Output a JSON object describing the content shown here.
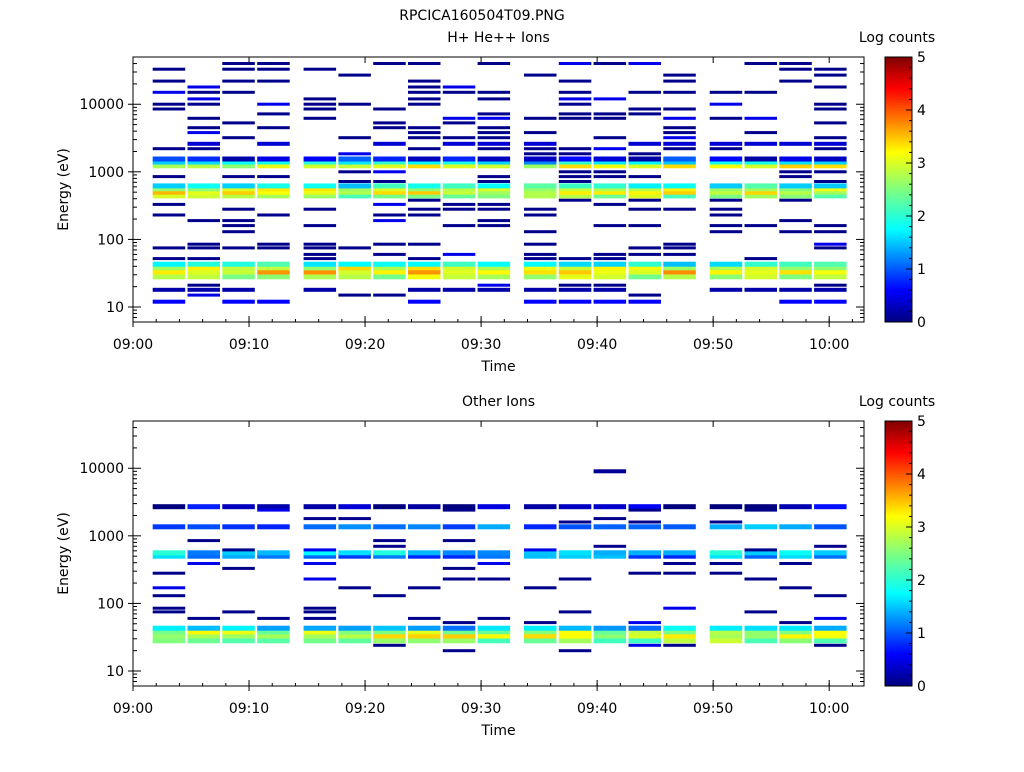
{
  "figure": {
    "title": "RPCICA160504T09.PNG"
  },
  "chart_data": [
    {
      "type": "heatmap",
      "title": "H+ He++ Ions",
      "xlabel": "Time",
      "ylabel": "Energy (eV)",
      "x_ticks": [
        "09:00",
        "09:10",
        "09:20",
        "09:30",
        "09:40",
        "09:50",
        "10:00"
      ],
      "x_range": [
        "09:00",
        "10:03"
      ],
      "y_scale": "log",
      "y_ticks": [
        "10",
        "100",
        "1000",
        "10000"
      ],
      "y_range": [
        6,
        50000
      ],
      "colorbar": {
        "label": "Log counts",
        "range": [
          0,
          5
        ],
        "ticks": [
          "0",
          "1",
          "2",
          "3",
          "4",
          "5"
        ]
      },
      "time_bins": [
        "09:03",
        "09:06",
        "09:09",
        "09:12",
        "09:16",
        "09:19",
        "09:22",
        "09:25",
        "09:28",
        "09:31",
        "09:35",
        "09:38",
        "09:41",
        "09:44",
        "09:47",
        "09:51",
        "09:54",
        "09:57",
        "10:00"
      ],
      "cells": [
        {
          "energy": 28,
          "value": 2.8,
          "span": "all"
        },
        {
          "energy": 33,
          "value": 3.3,
          "span": "all"
        },
        {
          "energy": 38,
          "value": 3.0,
          "span": "all"
        },
        {
          "energy": 43,
          "value": 1.8,
          "span": "all"
        },
        {
          "energy": 440,
          "value": 2.6,
          "span": "all"
        },
        {
          "energy": 500,
          "value": 3.1,
          "span": "all"
        },
        {
          "energy": 560,
          "value": 3.0,
          "span": "all"
        },
        {
          "energy": 620,
          "value": 1.9,
          "span": "all"
        },
        {
          "energy": 1230,
          "value": 3.0,
          "span": "all"
        },
        {
          "energy": 1400,
          "value": 1.6,
          "span": "all"
        },
        {
          "energy": 1550,
          "value": 0.6,
          "span": "all"
        },
        {
          "energy": 2600,
          "value": 0.4,
          "span": "sparse"
        },
        {
          "energy": 18,
          "value": 0.2,
          "span": "sparse"
        },
        {
          "energy": 12,
          "value": 0.6,
          "span": "sparse"
        }
      ]
    },
    {
      "type": "heatmap",
      "title": "Other Ions",
      "xlabel": "Time",
      "ylabel": "Energy (eV)",
      "x_ticks": [
        "09:00",
        "09:10",
        "09:20",
        "09:30",
        "09:40",
        "09:50",
        "10:00"
      ],
      "x_range": [
        "09:00",
        "10:03"
      ],
      "y_scale": "log",
      "y_ticks": [
        "10",
        "100",
        "1000",
        "10000"
      ],
      "y_range": [
        6,
        50000
      ],
      "colorbar": {
        "label": "Log counts",
        "range": [
          0,
          5
        ],
        "ticks": [
          "0",
          "1",
          "2",
          "3",
          "4",
          "5"
        ]
      },
      "time_bins": [
        "09:03",
        "09:06",
        "09:09",
        "09:12",
        "09:16",
        "09:19",
        "09:22",
        "09:25",
        "09:28",
        "09:31",
        "09:35",
        "09:38",
        "09:41",
        "09:44",
        "09:47",
        "09:51",
        "09:54",
        "09:57",
        "10:00"
      ],
      "cells": [
        {
          "energy": 28,
          "value": 2.5,
          "span": "all"
        },
        {
          "energy": 33,
          "value": 3.0,
          "span": "all"
        },
        {
          "energy": 38,
          "value": 2.8,
          "span": "all"
        },
        {
          "energy": 43,
          "value": 1.5,
          "span": "all"
        },
        {
          "energy": 500,
          "value": 1.2,
          "span": "all"
        },
        {
          "energy": 560,
          "value": 1.6,
          "span": "all"
        },
        {
          "energy": 1360,
          "value": 1.1,
          "span": "all"
        },
        {
          "energy": 2700,
          "value": 0.3,
          "span": "all"
        },
        {
          "energy": 9000,
          "value": 0.1,
          "span": "single"
        }
      ]
    }
  ]
}
